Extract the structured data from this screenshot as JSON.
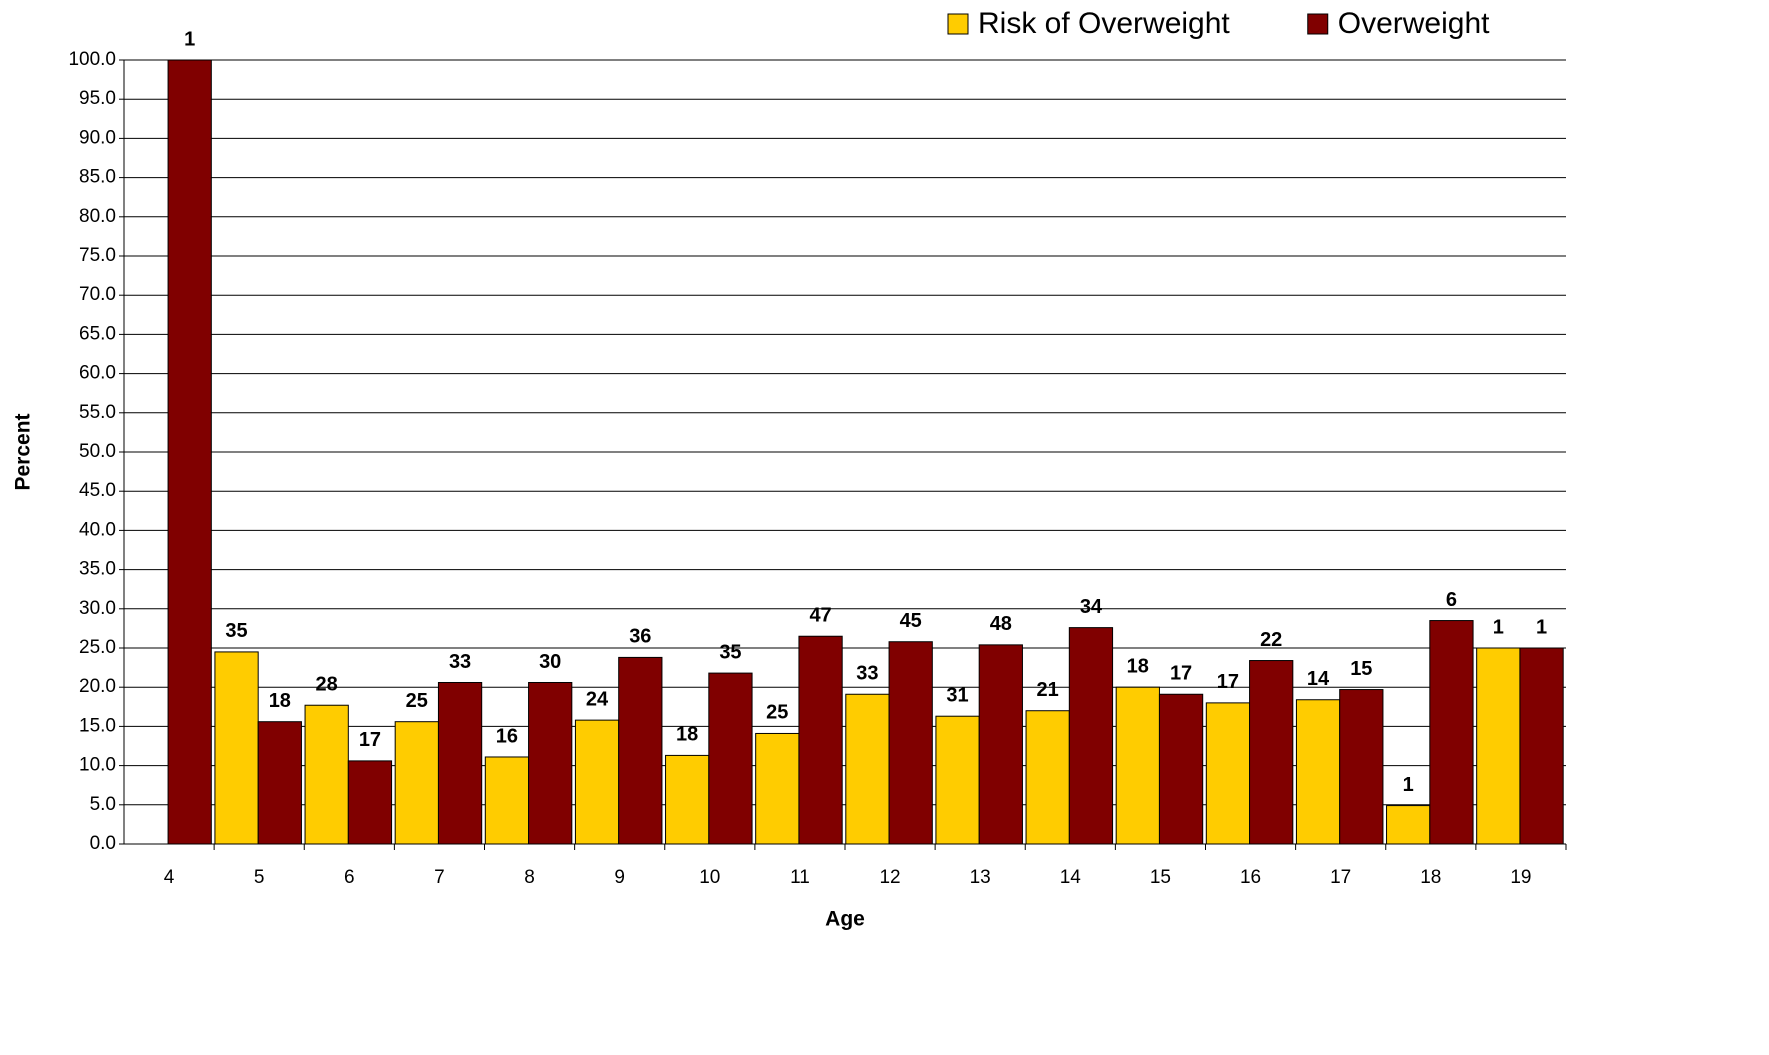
{
  "chart_data": {
    "type": "bar",
    "x_label": "Age",
    "y_label": "Percent",
    "categories": [
      "4",
      "5",
      "6",
      "7",
      "8",
      "9",
      "10",
      "11",
      "12",
      "13",
      "14",
      "15",
      "16",
      "17",
      "18",
      "19"
    ],
    "series": [
      {
        "name": "Risk of Overweight",
        "color": "#ffcc00",
        "values": [
          null,
          24.5,
          17.7,
          15.6,
          11.1,
          15.8,
          11.3,
          14.1,
          19.1,
          16.3,
          17.0,
          20.0,
          18.0,
          18.4,
          4.9,
          25.0
        ],
        "counts": [
          null,
          35,
          28,
          25,
          16,
          24,
          18,
          25,
          33,
          31,
          21,
          18,
          17,
          14,
          1,
          1
        ]
      },
      {
        "name": "Overweight",
        "color": "#800000",
        "values": [
          100,
          15.6,
          10.6,
          20.6,
          20.6,
          23.8,
          21.8,
          26.5,
          25.8,
          25.4,
          27.6,
          19.1,
          23.4,
          19.7,
          28.5,
          25.0
        ],
        "counts": [
          1,
          18,
          17,
          33,
          30,
          36,
          35,
          47,
          45,
          48,
          34,
          17,
          22,
          15,
          6,
          1
        ]
      }
    ],
    "ylim": [
      0,
      100
    ],
    "yticks": [
      {
        "value": 0,
        "label": "0.0"
      },
      {
        "value": 5,
        "label": "5.0"
      },
      {
        "value": 10,
        "label": "10.0"
      },
      {
        "value": 15,
        "label": "15.0"
      },
      {
        "value": 20,
        "label": "20.0"
      },
      {
        "value": 25,
        "label": "25.0"
      },
      {
        "value": 30,
        "label": "30.0"
      },
      {
        "value": 35,
        "label": "35.0"
      },
      {
        "value": 40,
        "label": "40.0"
      },
      {
        "value": 45,
        "label": "45.0"
      },
      {
        "value": 50,
        "label": "50.0"
      },
      {
        "value": 55,
        "label": "55.0"
      },
      {
        "value": 60,
        "label": "60.0"
      },
      {
        "value": 65,
        "label": "65.0"
      },
      {
        "value": 70,
        "label": "70.0"
      },
      {
        "value": 75,
        "label": "75.0"
      },
      {
        "value": 80,
        "label": "80.0"
      },
      {
        "value": 85,
        "label": "85.0"
      },
      {
        "value": 90,
        "label": "90.0"
      },
      {
        "value": 95,
        "label": "95.0"
      },
      {
        "value": 100,
        "label": "100.0"
      }
    ],
    "grid": true,
    "legend": "top-right"
  }
}
